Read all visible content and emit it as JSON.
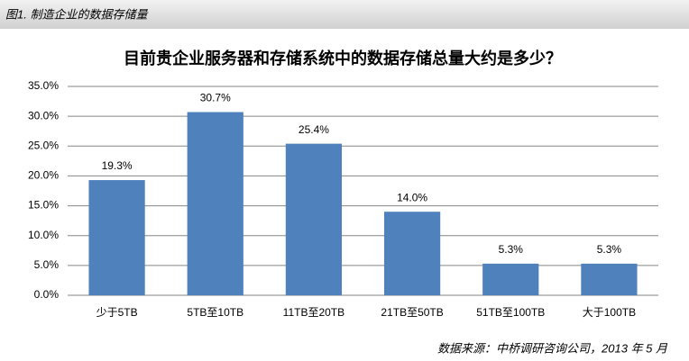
{
  "caption": "图1. 制造企业的数据存储量",
  "source": "数据来源：中桥调研咨询公司，2013 年 5 月",
  "chart_data": {
    "type": "bar",
    "title": "目前贵企业服务器和存储系统中的数据存储总量大约是多少？",
    "categories": [
      "少于5TB",
      "5TB至10TB",
      "11TB至20TB",
      "21TB至50TB",
      "51TB至100TB",
      "大于100TB"
    ],
    "values": [
      19.3,
      30.7,
      25.4,
      14.0,
      5.3,
      5.3
    ],
    "value_labels": [
      "19.3%",
      "30.7%",
      "25.4%",
      "14.0%",
      "5.3%",
      "5.3%"
    ],
    "color": "#4f81bd",
    "ylim": [
      0,
      35
    ],
    "yticks": [
      {
        "value": 0,
        "label": "0.0%"
      },
      {
        "value": 5,
        "label": "5.0%"
      },
      {
        "value": 10,
        "label": "10.0%"
      },
      {
        "value": 15,
        "label": "15.0%"
      },
      {
        "value": 20,
        "label": "20.0%"
      },
      {
        "value": 25,
        "label": "25.0%"
      },
      {
        "value": 30,
        "label": "30.0%"
      },
      {
        "value": 35,
        "label": "35.0%"
      }
    ],
    "grid": true
  }
}
